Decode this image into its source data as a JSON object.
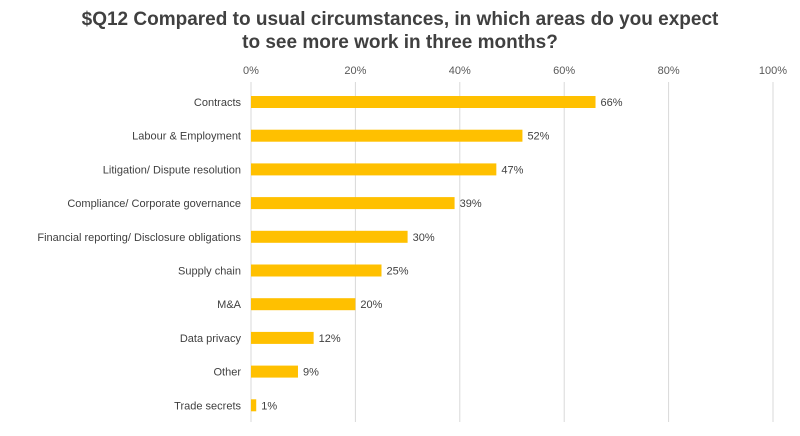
{
  "title_line1": "$Q12 Compared to usual circumstances, in which areas do you expect",
  "title_line2": "to see more work in three months?",
  "chart_data": {
    "type": "bar",
    "orientation": "horizontal",
    "title": "$Q12 Compared to usual circumstances, in which areas do you expect to see more work in three months?",
    "categories": [
      "Contracts",
      "Labour & Employment",
      "Litigation/ Dispute resolution",
      "Compliance/ Corporate governance",
      "Financial reporting/ Disclosure obligations",
      "Supply chain",
      "M&A",
      "Data privacy",
      "Other",
      "Trade secrets"
    ],
    "values": [
      66,
      52,
      47,
      39,
      30,
      25,
      20,
      12,
      9,
      1
    ],
    "data_labels": [
      "66%",
      "52%",
      "47%",
      "39%",
      "30%",
      "25%",
      "20%",
      "12%",
      "9%",
      "1%"
    ],
    "xlim": [
      0,
      100
    ],
    "x_ticks": [
      0,
      20,
      40,
      60,
      80,
      100
    ],
    "x_tick_labels": [
      "0%",
      "20%",
      "40%",
      "60%",
      "80%",
      "100%"
    ],
    "axis_position": "top",
    "grid": true,
    "bar_color": "#FFC000",
    "grid_color": "#D9D9D9"
  }
}
